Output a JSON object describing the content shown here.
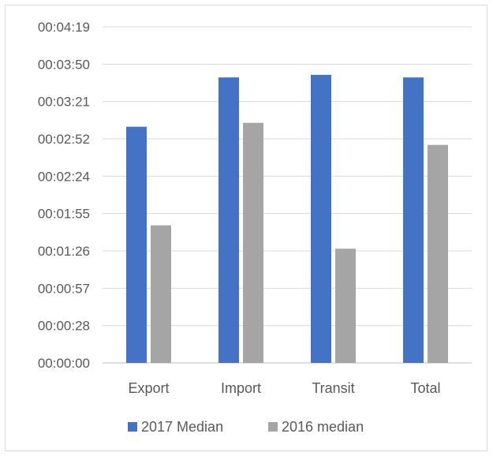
{
  "chart_data": {
    "type": "bar",
    "categories": [
      "Export",
      "Import",
      "Transit",
      "Total"
    ],
    "series": [
      {
        "name": "2017 Median",
        "color": "#4472c4",
        "values_seconds": [
          182,
          220,
          222,
          220
        ]
      },
      {
        "name": "2016 median",
        "color": "#a5a5a5",
        "values_seconds": [
          106,
          185,
          88,
          168
        ]
      }
    ],
    "y_ticks": [
      "00:00:00",
      "00:00:28",
      "00:00:57",
      "00:01:26",
      "00:01:55",
      "00:02:24",
      "00:02:52",
      "00:03:21",
      "00:03:50",
      "00:04:19"
    ],
    "y_unit": "hh:mm:ss",
    "ylim_seconds": [
      0,
      259
    ],
    "grid": true,
    "legend_position": "bottom"
  }
}
